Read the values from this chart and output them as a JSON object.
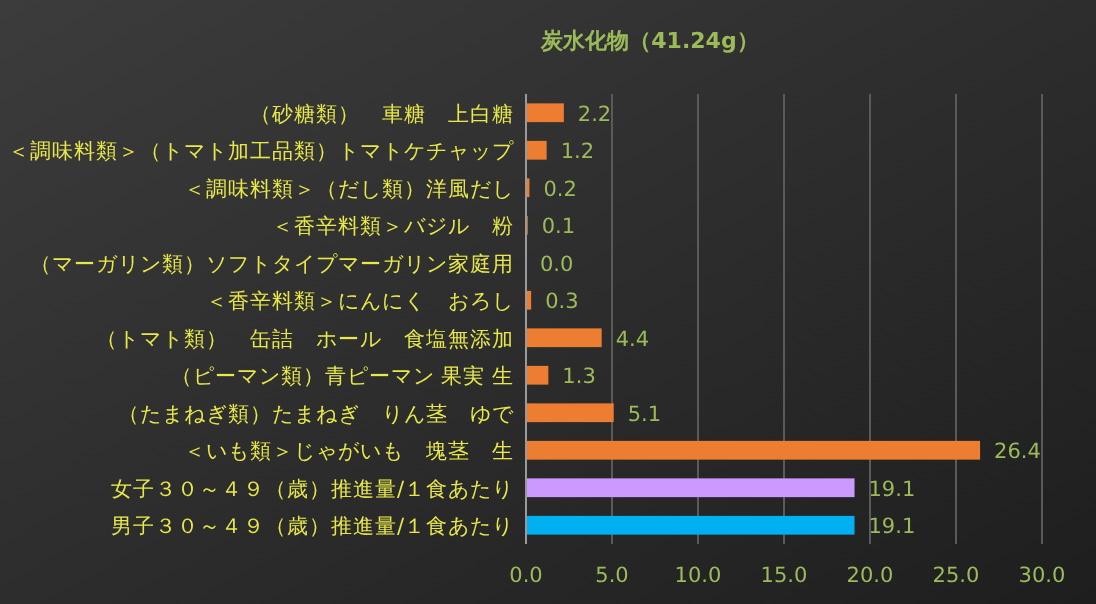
{
  "chart_data": {
    "type": "bar",
    "orientation": "horizontal",
    "title": "炭水化物（41.24g）",
    "categories": [
      "（砂糖類）　車糖　上白糖",
      "＜調味料類＞（トマト加工品類）トマトケチャップ",
      "＜調味料類＞（だし類）洋風だし",
      "＜香辛料類＞バジル　粉",
      "（マーガリン類）ソフトタイプマーガリン家庭用",
      "＜香辛料類＞にんにく　おろし",
      "（トマト類）　缶詰　ホール　食塩無添加",
      "（ピーマン類）青ピーマン 果実 生",
      "（たまねぎ類）たまねぎ　りん茎　ゆで",
      "＜いも類＞じゃがいも　塊茎　生",
      "女子３０～４９（歳）推進量/１食あたり",
      "男子３０～４９（歳）推進量/１食あたり"
    ],
    "values": [
      2.2,
      1.2,
      0.2,
      0.1,
      0.0,
      0.3,
      4.4,
      1.3,
      5.1,
      26.4,
      19.1,
      19.1
    ],
    "colors": [
      "#ed7d31",
      "#ed7d31",
      "#ed7d31",
      "#ed7d31",
      "#ed7d31",
      "#ed7d31",
      "#ed7d31",
      "#ed7d31",
      "#ed7d31",
      "#ed7d31",
      "#cc99ff",
      "#00b0f0"
    ],
    "xlim": [
      0,
      30
    ],
    "xticks": [
      {
        "value": 0,
        "label": "0.0"
      },
      {
        "value": 5,
        "label": "5.0"
      },
      {
        "value": 10,
        "label": "10.0"
      },
      {
        "value": 15,
        "label": "15.0"
      },
      {
        "value": 20,
        "label": "20.0"
      },
      {
        "value": 25,
        "label": "25.0"
      },
      {
        "value": 30,
        "label": "30.0"
      }
    ],
    "value_labels": [
      "2.2",
      "1.2",
      "0.2",
      "0.1",
      "0.0",
      "0.3",
      "4.4",
      "1.3",
      "5.1",
      "26.4",
      "19.1",
      "19.1"
    ],
    "grid": "x"
  }
}
